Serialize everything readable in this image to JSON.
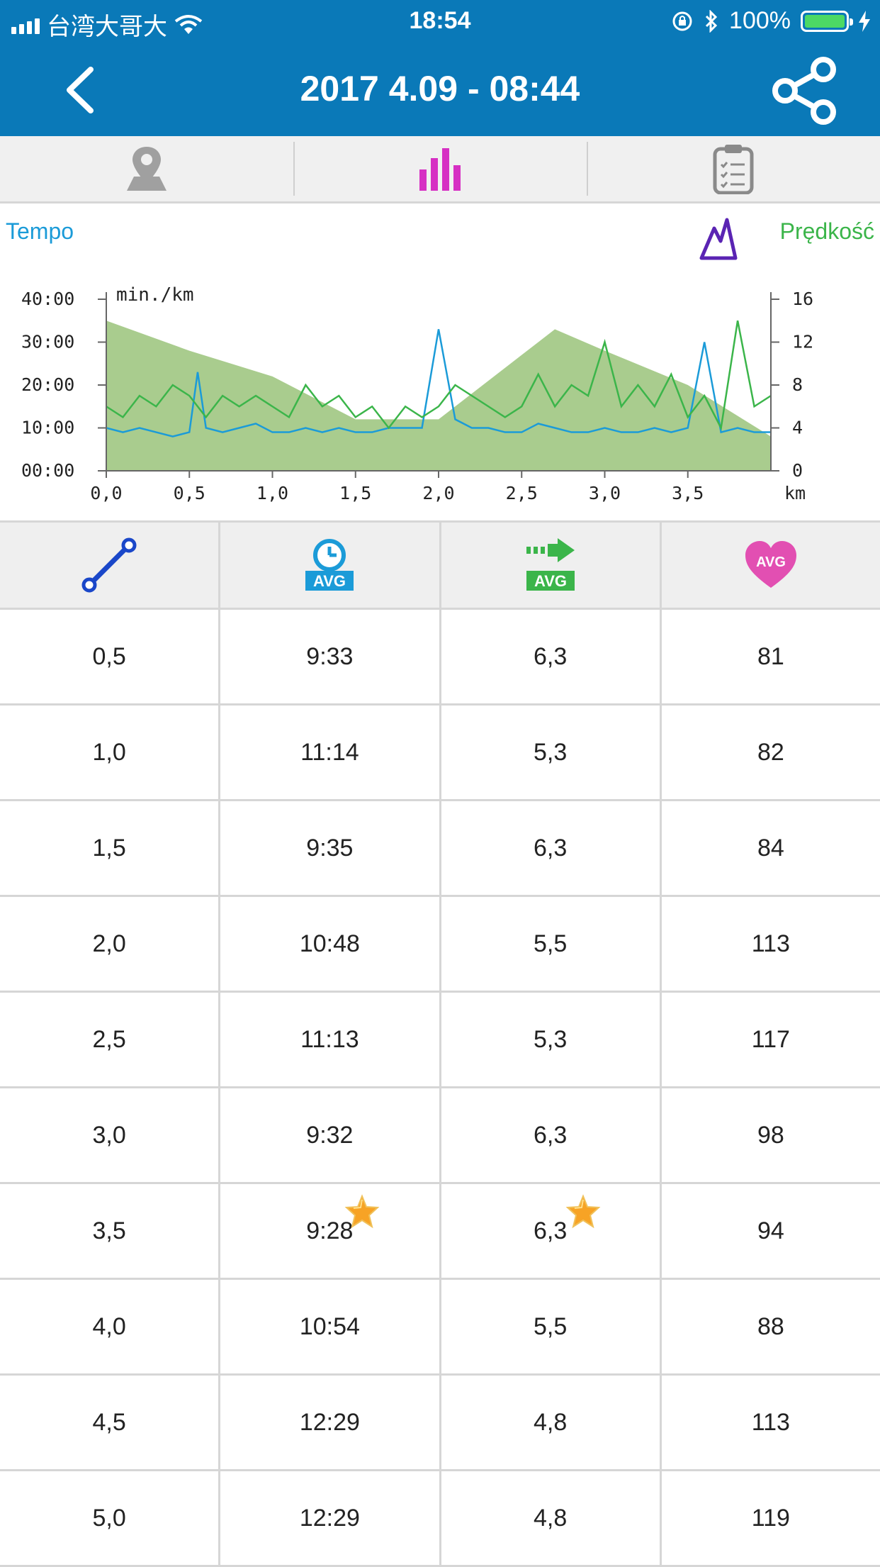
{
  "status_bar": {
    "carrier": "台湾大哥大",
    "time": "18:54",
    "battery": "100%"
  },
  "nav": {
    "title": "2017 4.09 - 08:44"
  },
  "tabs": [
    {
      "icon": "map-pin-icon"
    },
    {
      "icon": "bar-chart-icon",
      "active": true
    },
    {
      "icon": "clipboard-icon"
    }
  ],
  "chart": {
    "legend_left": "Tempo",
    "legend_right": "Prędkość",
    "unit_label": "min./km",
    "left_ticks": [
      "40:00",
      "30:00",
      "20:00",
      "10:00",
      "00:00"
    ],
    "right_ticks": [
      "16",
      "12",
      "8",
      "4",
      "0"
    ],
    "x_ticks": [
      "0,0",
      "0,5",
      "1,0",
      "1,5",
      "2,0",
      "2,5",
      "3,0",
      "3,5"
    ],
    "x_unit": "km",
    "colors": {
      "tempo": "#1b9bd8",
      "speed": "#3bb54a",
      "area": "#a9cc8e"
    }
  },
  "chart_data": {
    "type": "line",
    "xlabel": "km",
    "ylabel": "min./km",
    "x_range": [
      0,
      4.0
    ],
    "ylim_left_minutes": [
      0,
      40
    ],
    "ylim_right": [
      0,
      16
    ],
    "series": [
      {
        "name": "Tempo",
        "axis": "left",
        "x": [
          0,
          0.1,
          0.2,
          0.3,
          0.4,
          0.5,
          0.55,
          0.6,
          0.7,
          0.8,
          0.9,
          1.0,
          1.1,
          1.2,
          1.3,
          1.4,
          1.5,
          1.6,
          1.7,
          1.8,
          1.9,
          2.0,
          2.1,
          2.2,
          2.3,
          2.4,
          2.5,
          2.6,
          2.7,
          2.8,
          2.9,
          3.0,
          3.1,
          3.2,
          3.3,
          3.4,
          3.5,
          3.6,
          3.7,
          3.8,
          3.9,
          4.0
        ],
        "values": [
          10,
          9,
          10,
          9,
          8,
          9,
          23,
          10,
          9,
          10,
          11,
          9,
          9,
          10,
          9,
          10,
          9,
          9,
          10,
          10,
          10,
          33,
          12,
          10,
          10,
          9,
          9,
          11,
          10,
          9,
          9,
          10,
          9,
          9,
          10,
          9,
          10,
          30,
          9,
          10,
          9,
          9
        ]
      },
      {
        "name": "Prędkość",
        "axis": "right",
        "x": [
          0,
          0.1,
          0.2,
          0.3,
          0.4,
          0.5,
          0.6,
          0.7,
          0.8,
          0.9,
          1.0,
          1.1,
          1.2,
          1.3,
          1.4,
          1.5,
          1.6,
          1.7,
          1.8,
          1.9,
          2.0,
          2.1,
          2.2,
          2.3,
          2.4,
          2.5,
          2.6,
          2.7,
          2.8,
          2.9,
          3.0,
          3.1,
          3.2,
          3.3,
          3.4,
          3.5,
          3.6,
          3.7,
          3.8,
          3.9,
          4.0
        ],
        "values": [
          6,
          5,
          7,
          6,
          8,
          7,
          5,
          7,
          6,
          7,
          6,
          5,
          8,
          6,
          7,
          5,
          6,
          4,
          6,
          5,
          6,
          8,
          7,
          6,
          5,
          6,
          9,
          6,
          8,
          7,
          12,
          6,
          8,
          6,
          9,
          5,
          7,
          4,
          14,
          6,
          7
        ]
      },
      {
        "name": "area",
        "axis": "left",
        "x": [
          0,
          0.5,
          1.0,
          1.5,
          2.0,
          2.5,
          2.7,
          3.0,
          3.5,
          4.0
        ],
        "values": [
          35,
          28,
          22,
          12,
          12,
          27,
          33,
          28,
          20,
          8
        ]
      }
    ]
  },
  "table": {
    "headers": [
      {
        "icon": "distance-icon"
      },
      {
        "icon": "avg-time-icon",
        "badge": "AVG"
      },
      {
        "icon": "avg-speed-icon",
        "badge": "AVG"
      },
      {
        "icon": "avg-heart-icon",
        "badge": "AVG"
      }
    ],
    "rows": [
      {
        "distance": "0,5",
        "time": "9:33",
        "speed": "6,3",
        "hr": "81"
      },
      {
        "distance": "1,0",
        "time": "11:14",
        "speed": "5,3",
        "hr": "82"
      },
      {
        "distance": "1,5",
        "time": "9:35",
        "speed": "6,3",
        "hr": "84"
      },
      {
        "distance": "2,0",
        "time": "10:48",
        "speed": "5,5",
        "hr": "113"
      },
      {
        "distance": "2,5",
        "time": "11:13",
        "speed": "5,3",
        "hr": "117"
      },
      {
        "distance": "3,0",
        "time": "9:32",
        "speed": "6,3",
        "hr": "98"
      },
      {
        "distance": "3,5",
        "time": "9:28",
        "speed": "6,3",
        "hr": "94",
        "best": true
      },
      {
        "distance": "4,0",
        "time": "10:54",
        "speed": "5,5",
        "hr": "88"
      },
      {
        "distance": "4,5",
        "time": "12:29",
        "speed": "4,8",
        "hr": "113"
      },
      {
        "distance": "5,0",
        "time": "12:29",
        "speed": "4,8",
        "hr": "119"
      }
    ]
  }
}
